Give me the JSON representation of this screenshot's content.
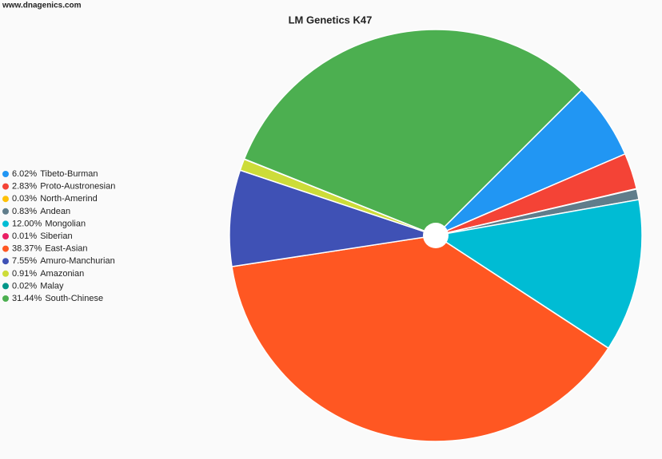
{
  "chart_data": {
    "type": "pie",
    "title": "LM Genetics K47",
    "source": "www.dnagenics.com",
    "categories": [
      "Tibeto-Burman",
      "Proto-Austronesian",
      "North-Amerind",
      "Andean",
      "Mongolian",
      "Siberian",
      "East-Asian",
      "Amuro-Manchurian",
      "Amazonian",
      "Malay",
      "South-Chinese"
    ],
    "values": [
      6.02,
      2.83,
      0.03,
      0.83,
      12.0,
      0.01,
      38.37,
      7.55,
      0.91,
      0.02,
      31.44
    ],
    "value_labels": [
      "6.02%",
      "2.83%",
      "0.03%",
      "0.83%",
      "12.00%",
      "0.01%",
      "38.37%",
      "7.55%",
      "0.91%",
      "0.02%",
      "31.44%"
    ],
    "colors": [
      "#2196f3",
      "#f44336",
      "#ffc107",
      "#607d8b",
      "#00bcd4",
      "#e91e63",
      "#ff5722",
      "#3f51b5",
      "#cddc39",
      "#009688",
      "#4caf50"
    ],
    "legend": "left"
  }
}
